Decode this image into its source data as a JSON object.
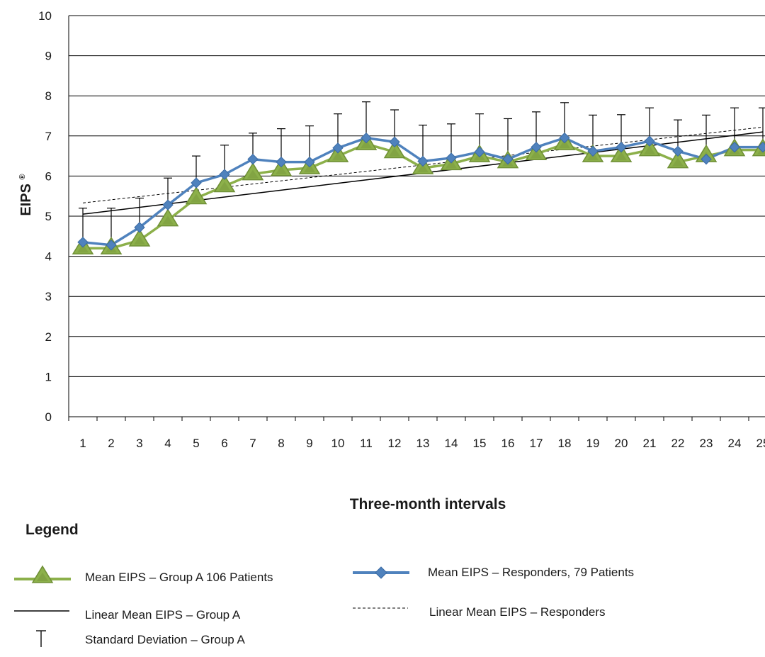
{
  "chart_data": {
    "type": "line",
    "ylabel": "EIPS®",
    "xlabel": "Three-month intervals",
    "ylim": [
      0,
      10
    ],
    "yticks": [
      "0",
      "1",
      "2",
      "3",
      "4",
      "5",
      "6",
      "7",
      "8",
      "9",
      "10"
    ],
    "categories": [
      "1",
      "2",
      "3",
      "4",
      "5",
      "6",
      "7",
      "8",
      "9",
      "10",
      "11",
      "12",
      "13",
      "14",
      "15",
      "16",
      "17",
      "18",
      "19",
      "20",
      "21",
      "22",
      "23",
      "24",
      "25"
    ],
    "grid": "horizontal",
    "series": [
      {
        "name": "Mean EIPS – Group A 106 Patients",
        "color": "#8cb04a",
        "marker": "triangle",
        "values": [
          4.2,
          4.2,
          4.4,
          4.9,
          5.45,
          5.75,
          6.05,
          6.15,
          6.2,
          6.5,
          6.8,
          6.6,
          6.2,
          6.3,
          6.5,
          6.35,
          6.55,
          6.8,
          6.5,
          6.5,
          6.65,
          6.35,
          6.5,
          6.65,
          6.65
        ]
      },
      {
        "name": "Mean EIPS – Responders, 79 Patients",
        "color": "#4f82bd",
        "marker": "diamond",
        "values": [
          4.35,
          4.28,
          4.72,
          5.28,
          5.83,
          6.04,
          6.42,
          6.35,
          6.35,
          6.7,
          6.95,
          6.85,
          6.37,
          6.45,
          6.6,
          6.42,
          6.72,
          6.95,
          6.62,
          6.72,
          6.87,
          6.62,
          6.42,
          6.72,
          6.72
        ]
      }
    ],
    "trendlines": [
      {
        "name": "Linear Mean EIPS – Group A",
        "style": "solid",
        "color": "#000000",
        "start": 5.05,
        "end": 7.1
      },
      {
        "name": "Linear Mean EIPS – Responders",
        "style": "dashed",
        "color": "#000000",
        "start": 5.33,
        "end": 7.22
      }
    ],
    "error_bars": {
      "name": "Standard Deviation – Group A",
      "upper": [
        5.2,
        5.2,
        5.45,
        5.95,
        6.5,
        6.77,
        7.07,
        7.18,
        7.25,
        7.55,
        7.85,
        7.65,
        7.27,
        7.3,
        7.55,
        7.43,
        7.6,
        7.83,
        7.52,
        7.53,
        7.7,
        7.4,
        7.52,
        7.7,
        7.7
      ]
    }
  },
  "legend": {
    "title": "Legend",
    "items": {
      "group_a": "Mean EIPS – Group A 106 Patients",
      "responders": "Mean EIPS – Responders, 79 Patients",
      "linear_a": "Linear Mean EIPS – Group A",
      "linear_resp": "Linear Mean EIPS – Responders",
      "stddev": "Standard Deviation – Group A"
    }
  }
}
